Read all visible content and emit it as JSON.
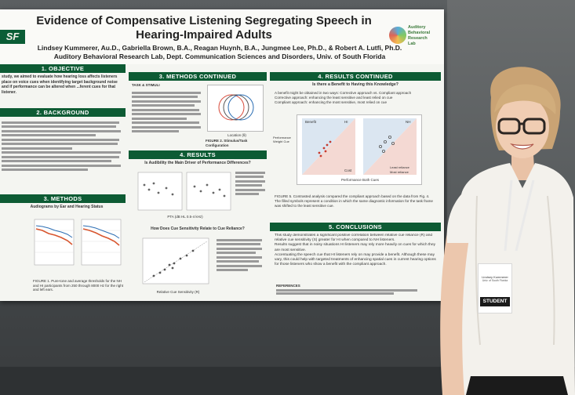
{
  "poster": {
    "title_line1": "Evidence of Compensative Listening Segregating Speech in",
    "title_line2": "Hearing-Impaired Adults",
    "authors_line1": "Lindsey Kummerer, Au.D., Gabriella Brown, B.A., Reagan Huynh, B.A., Jungmee Lee, Ph.D., & Robert A. Lutfi, Ph.D.",
    "authors_line2": "Auditory Behavioral Research Lab, Dept. Communication Sciences and Disorders, Univ. of South Florida",
    "usf_logo": "SF",
    "lab_logo_text": "Auditory Behavioral Research Lab",
    "sections": {
      "objective": "1. OBJECTIVE",
      "background": "2. BACKGROUND",
      "methods": "3. METHODS",
      "methods_continued": "3. METHODS CONTINUED",
      "results": "4. RESULTS",
      "results_continued": "4. RESULTS CONTINUED",
      "conclusions": "5. CONCLUSIONS"
    },
    "objective_text": "study, we aimed to evaluate how hearing loss affects listeners place on voice cues when identifying target background noise and if performance can be altered when ...ferent cues for that listener.",
    "methods_fig_title": "Audiograms by Ear and Hearing Status",
    "methods_fig_caption": "FIGURE 1. Pure-tone and average thresholds for the NH and HI participants from 250 through 8000 Hz for the right and left ears.",
    "methods_cont_heading": "TASK & STIMULI",
    "methods_cont_fig_caption": "FIGURE 2. Stimulus/Task Configuration",
    "methods_cont_fig_label": "Location (θ)",
    "results_q1": "Is Audibility the Main Driver of Performance Differences?",
    "results_fig_xlabel": "PTA (dB HL 0.5-4 kHz)",
    "results_q2": "How Does Cue Sensitivity Relate to Cue Reliance?",
    "results_fig2_xlabel": "Relative Cue Sensitivity (R)",
    "results_cont_q": "Is there a Benefit to Having this Knowledge?",
    "results_cont_points": [
      "A benefit might be obtained in two ways: Corrective approach vs. Compliant approach",
      "Corrective approach: enhancing the least sensitive and least relied on cue",
      "Compliant approach: enhancing the most sensitive, most relied on cue"
    ],
    "benefit_chart": {
      "ylabel": "Performance Weight Cue",
      "xlabel": "Performance Both Cues",
      "panel_labels": [
        "Benefit",
        "HI",
        "NH"
      ],
      "corner_labels": [
        "Better",
        "Worse",
        "Cost",
        "Better"
      ],
      "legend": [
        "Least reliance",
        "Most reliance"
      ]
    },
    "results_cont_caption": "FIGURE 5. Contrasted analysis compared the compliant approach based on the data from Fig. 4. The filled symbols represent a condition in which the same diagnostic information for the task frame was shifted to the least sensitive cue.",
    "conclusions_points": [
      "This study demonstrates a significant positive correlation between relative cue reliance (R) and relative cue sensitivity (S) greater for HI when compared to NH listeners.",
      "Results suggest that in noisy situations HI listeners may rely more heavily on cues for which they are most sensitive.",
      "Accentuating the speech cue that HI listeners rely on may provide a benefit. Although these may vary, this could help with targeted treatments of enhancing spatial cues in current hearing options for those listeners who show a benefit with the compliant approach."
    ],
    "references_label": "REFERENCES"
  },
  "badge": {
    "name": "Lindsey Kummerer",
    "org": "Univ. of South Florida",
    "role": "STUDENT"
  }
}
